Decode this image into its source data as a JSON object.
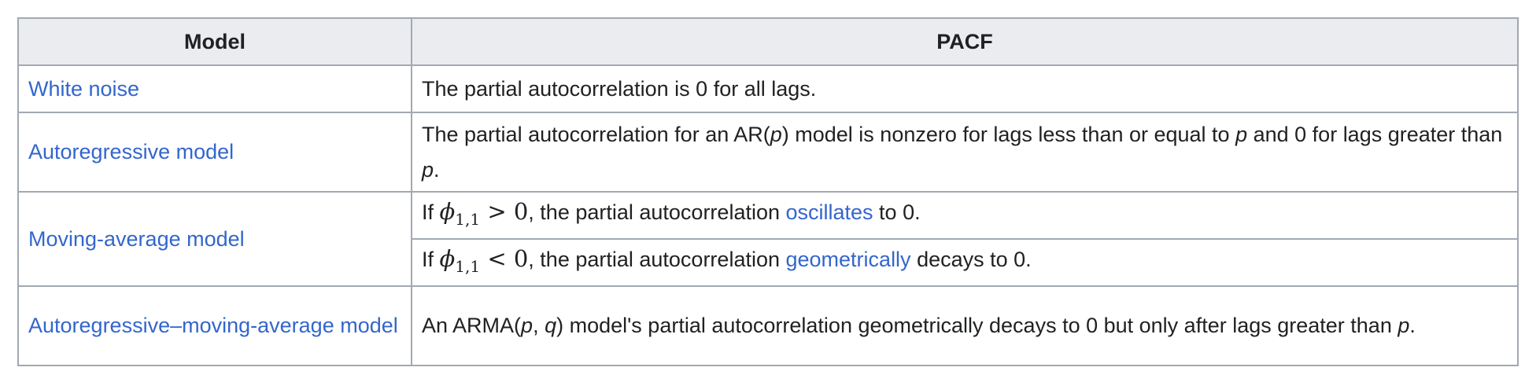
{
  "table": {
    "headers": {
      "model": "Model",
      "pacf": "PACF"
    },
    "rows": [
      {
        "model": "White noise",
        "pacf": "The partial autocorrelation is 0 for all lags."
      },
      {
        "model": "Autoregressive model",
        "pacf_parts": [
          "The partial autocorrelation for an AR(",
          "p",
          ") model is nonzero for lags less than or equal to ",
          "p",
          " and 0 for lags greater than ",
          "p",
          "."
        ]
      },
      {
        "model": "Moving-average model",
        "sub": [
          {
            "prefix": "If ",
            "math_symbol": "ϕ",
            "math_subscript": "1,1",
            "math_rel": " > 0",
            "mid": ", the partial autocorrelation ",
            "link": "oscillates",
            "suffix": " to 0."
          },
          {
            "prefix": "If ",
            "math_symbol": "ϕ",
            "math_subscript": "1,1",
            "math_rel": " < 0",
            "mid": ", the partial autocorrelation ",
            "link": "geometrically",
            "suffix": " decays to 0."
          }
        ]
      },
      {
        "model": "Autoregressive–moving-average model",
        "pacf_parts": [
          "An ARMA(",
          "p",
          ", ",
          "q",
          ") model's partial autocorrelation geometrically decays to 0 but only after lags greater than ",
          "p",
          "."
        ]
      }
    ]
  }
}
